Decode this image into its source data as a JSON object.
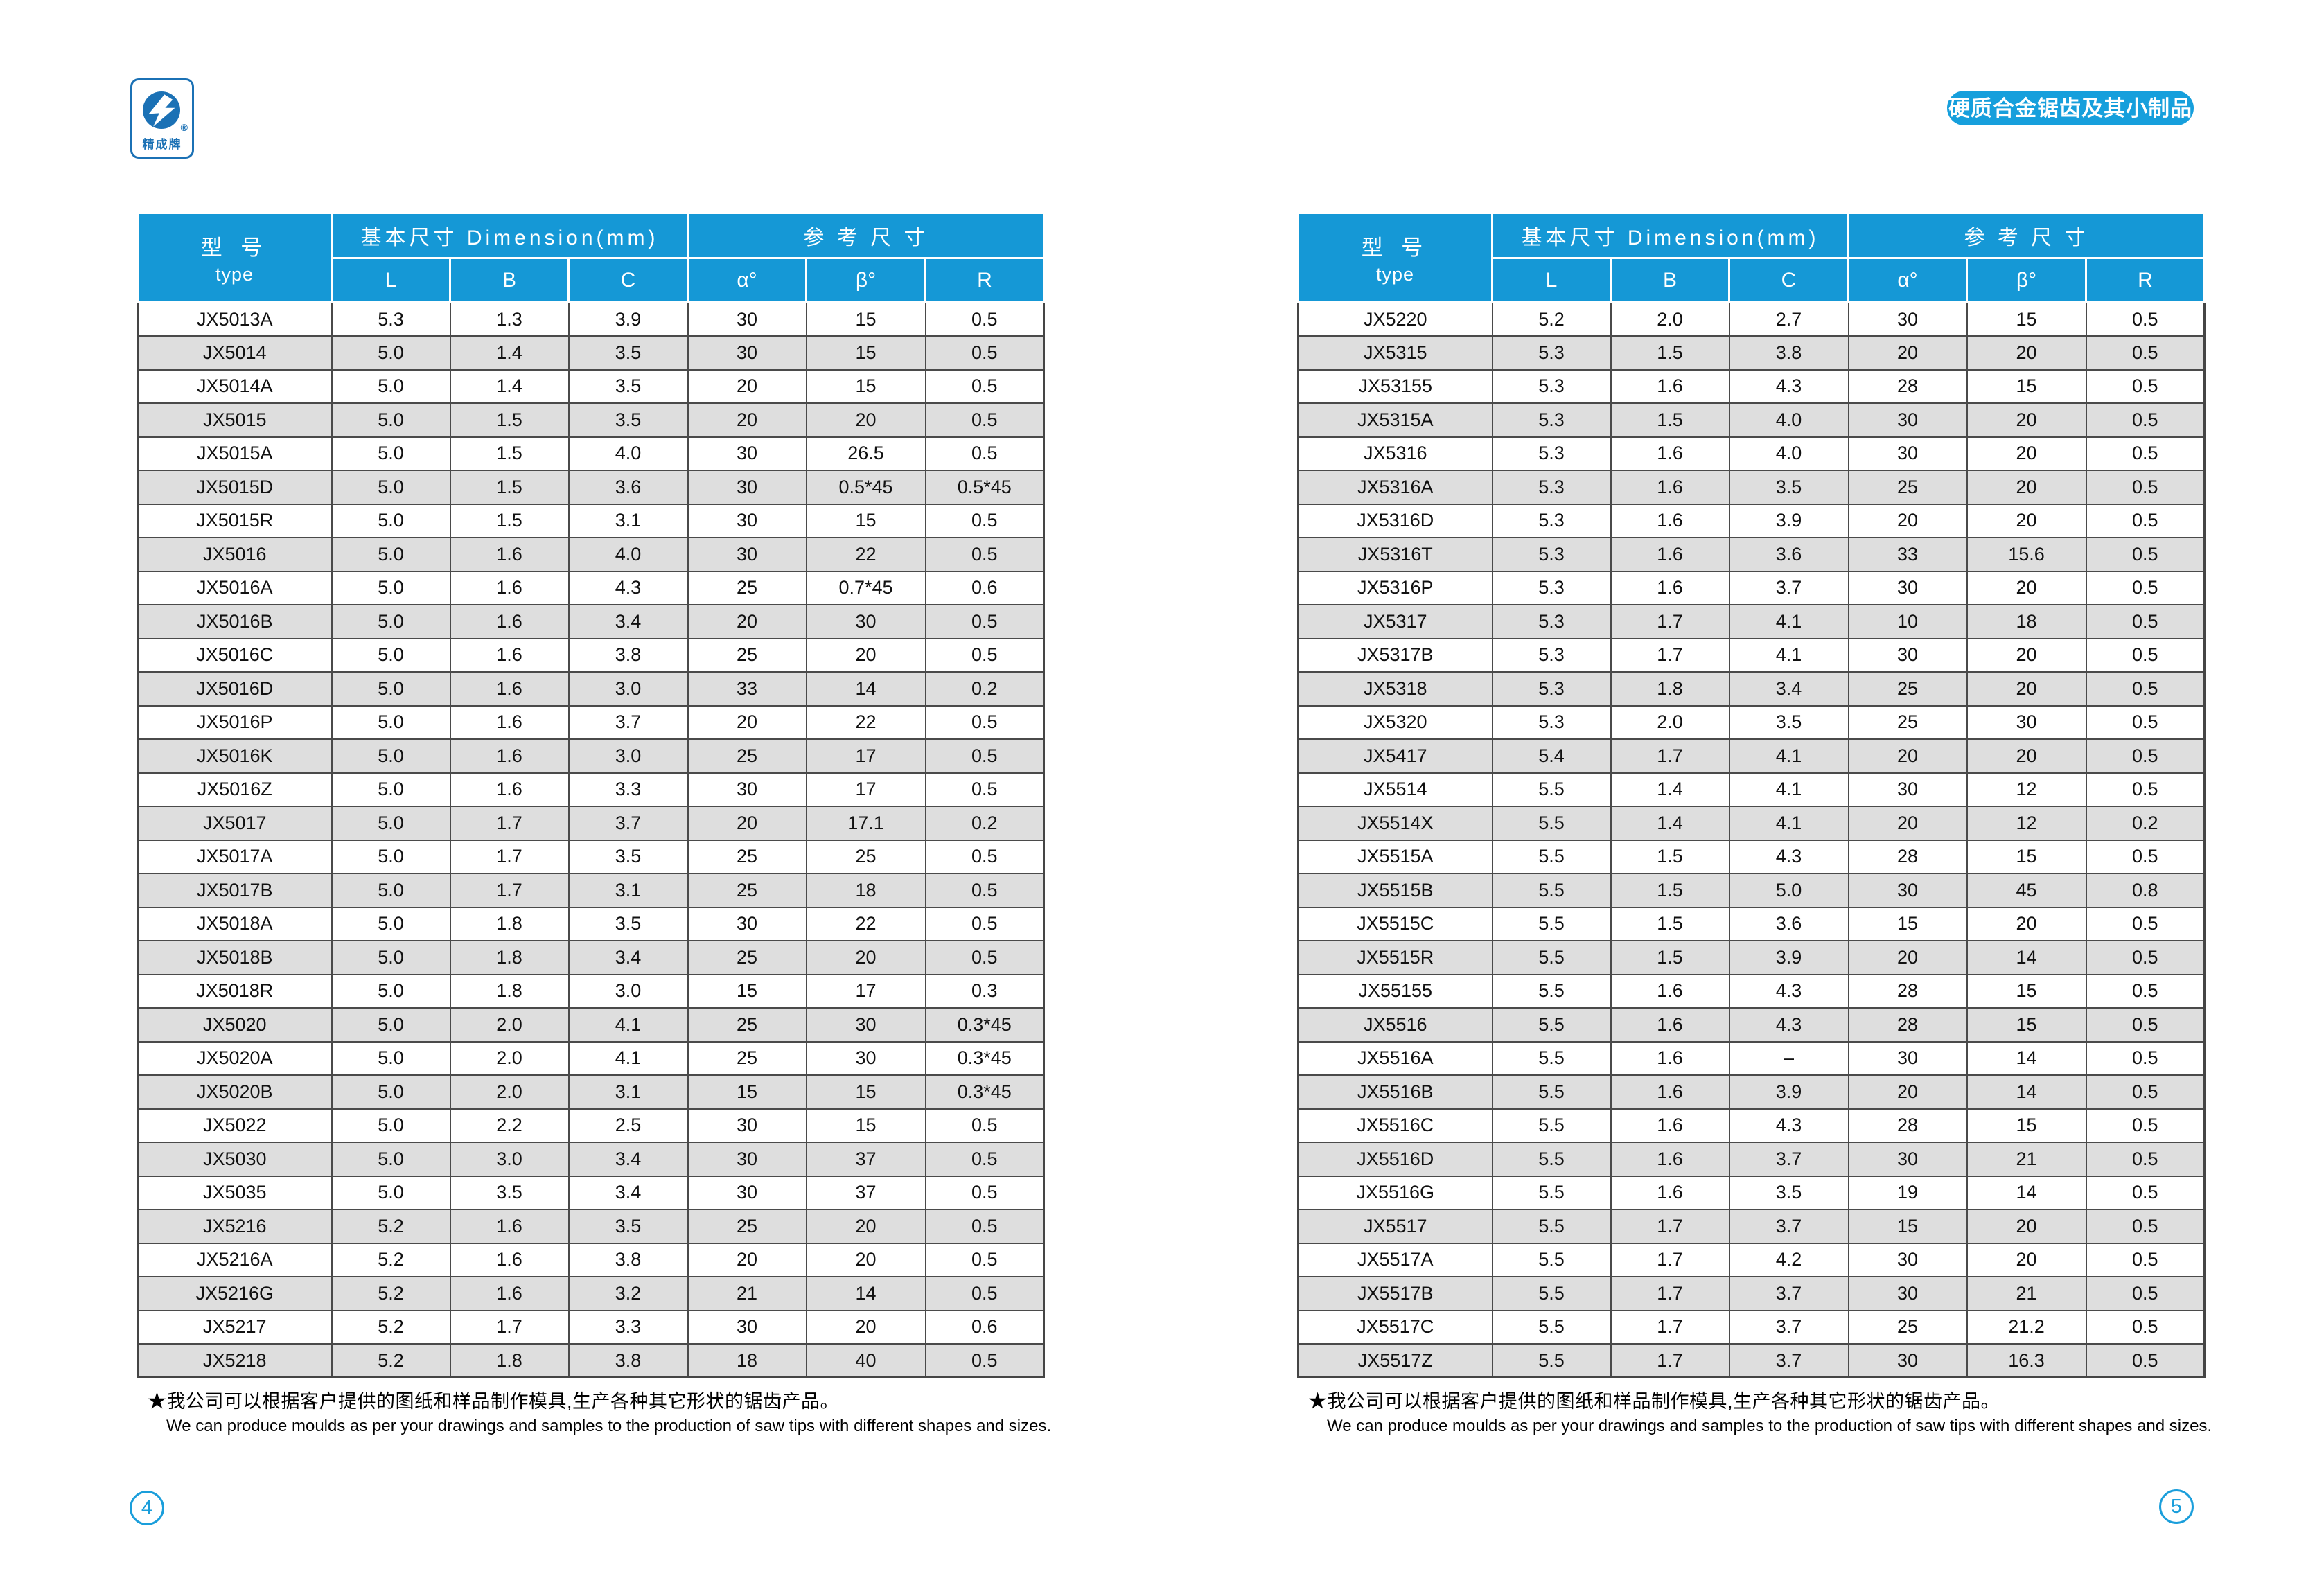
{
  "page": {
    "badge_label": "硬质合金锯齿及其小制品系列",
    "logo": {
      "brand": "精成牌",
      "registered": "®"
    },
    "page_number_left": "4",
    "page_number_right": "5"
  },
  "table_header": {
    "type_cn": "型 号",
    "type_en": "type",
    "group_basic": "基本尺寸 Dimension(mm)",
    "group_ref": "参 考 尺 寸",
    "col_l": "L",
    "col_b": "B",
    "col_c": "C",
    "col_alpha": "α°",
    "col_beta": "β°",
    "col_r": "R"
  },
  "footnote": {
    "cn": "★我公司可以根据客户提供的图纸和样品制作模具,生产各种其它形状的锯齿产品。",
    "en": "We can produce moulds as per your drawings and samples to the production of saw tips with different shapes and sizes."
  },
  "left_table": {
    "rows": [
      [
        "JX5013A",
        "5.3",
        "1.3",
        "3.9",
        "30",
        "15",
        "0.5"
      ],
      [
        "JX5014",
        "5.0",
        "1.4",
        "3.5",
        "30",
        "15",
        "0.5"
      ],
      [
        "JX5014A",
        "5.0",
        "1.4",
        "3.5",
        "20",
        "15",
        "0.5"
      ],
      [
        "JX5015",
        "5.0",
        "1.5",
        "3.5",
        "20",
        "20",
        "0.5"
      ],
      [
        "JX5015A",
        "5.0",
        "1.5",
        "4.0",
        "30",
        "26.5",
        "0.5"
      ],
      [
        "JX5015D",
        "5.0",
        "1.5",
        "3.6",
        "30",
        "0.5*45",
        "0.5*45"
      ],
      [
        "JX5015R",
        "5.0",
        "1.5",
        "3.1",
        "30",
        "15",
        "0.5"
      ],
      [
        "JX5016",
        "5.0",
        "1.6",
        "4.0",
        "30",
        "22",
        "0.5"
      ],
      [
        "JX5016A",
        "5.0",
        "1.6",
        "4.3",
        "25",
        "0.7*45",
        "0.6"
      ],
      [
        "JX5016B",
        "5.0",
        "1.6",
        "3.4",
        "20",
        "30",
        "0.5"
      ],
      [
        "JX5016C",
        "5.0",
        "1.6",
        "3.8",
        "25",
        "20",
        "0.5"
      ],
      [
        "JX5016D",
        "5.0",
        "1.6",
        "3.0",
        "33",
        "14",
        "0.2"
      ],
      [
        "JX5016P",
        "5.0",
        "1.6",
        "3.7",
        "20",
        "22",
        "0.5"
      ],
      [
        "JX5016K",
        "5.0",
        "1.6",
        "3.0",
        "25",
        "17",
        "0.5"
      ],
      [
        "JX5016Z",
        "5.0",
        "1.6",
        "3.3",
        "30",
        "17",
        "0.5"
      ],
      [
        "JX5017",
        "5.0",
        "1.7",
        "3.7",
        "20",
        "17.1",
        "0.2"
      ],
      [
        "JX5017A",
        "5.0",
        "1.7",
        "3.5",
        "25",
        "25",
        "0.5"
      ],
      [
        "JX5017B",
        "5.0",
        "1.7",
        "3.1",
        "25",
        "18",
        "0.5"
      ],
      [
        "JX5018A",
        "5.0",
        "1.8",
        "3.5",
        "30",
        "22",
        "0.5"
      ],
      [
        "JX5018B",
        "5.0",
        "1.8",
        "3.4",
        "25",
        "20",
        "0.5"
      ],
      [
        "JX5018R",
        "5.0",
        "1.8",
        "3.0",
        "15",
        "17",
        "0.3"
      ],
      [
        "JX5020",
        "5.0",
        "2.0",
        "4.1",
        "25",
        "30",
        "0.3*45"
      ],
      [
        "JX5020A",
        "5.0",
        "2.0",
        "4.1",
        "25",
        "30",
        "0.3*45"
      ],
      [
        "JX5020B",
        "5.0",
        "2.0",
        "3.1",
        "15",
        "15",
        "0.3*45"
      ],
      [
        "JX5022",
        "5.0",
        "2.2",
        "2.5",
        "30",
        "15",
        "0.5"
      ],
      [
        "JX5030",
        "5.0",
        "3.0",
        "3.4",
        "30",
        "37",
        "0.5"
      ],
      [
        "JX5035",
        "5.0",
        "3.5",
        "3.4",
        "30",
        "37",
        "0.5"
      ],
      [
        "JX5216",
        "5.2",
        "1.6",
        "3.5",
        "25",
        "20",
        "0.5"
      ],
      [
        "JX5216A",
        "5.2",
        "1.6",
        "3.8",
        "20",
        "20",
        "0.5"
      ],
      [
        "JX5216G",
        "5.2",
        "1.6",
        "3.2",
        "21",
        "14",
        "0.5"
      ],
      [
        "JX5217",
        "5.2",
        "1.7",
        "3.3",
        "30",
        "20",
        "0.6"
      ],
      [
        "JX5218",
        "5.2",
        "1.8",
        "3.8",
        "18",
        "40",
        "0.5"
      ]
    ]
  },
  "right_table": {
    "rows": [
      [
        "JX5220",
        "5.2",
        "2.0",
        "2.7",
        "30",
        "15",
        "0.5"
      ],
      [
        "JX5315",
        "5.3",
        "1.5",
        "3.8",
        "20",
        "20",
        "0.5"
      ],
      [
        "JX53155",
        "5.3",
        "1.6",
        "4.3",
        "28",
        "15",
        "0.5"
      ],
      [
        "JX5315A",
        "5.3",
        "1.5",
        "4.0",
        "30",
        "20",
        "0.5"
      ],
      [
        "JX5316",
        "5.3",
        "1.6",
        "4.0",
        "30",
        "20",
        "0.5"
      ],
      [
        "JX5316A",
        "5.3",
        "1.6",
        "3.5",
        "25",
        "20",
        "0.5"
      ],
      [
        "JX5316D",
        "5.3",
        "1.6",
        "3.9",
        "20",
        "20",
        "0.5"
      ],
      [
        "JX5316T",
        "5.3",
        "1.6",
        "3.6",
        "33",
        "15.6",
        "0.5"
      ],
      [
        "JX5316P",
        "5.3",
        "1.6",
        "3.7",
        "30",
        "20",
        "0.5"
      ],
      [
        "JX5317",
        "5.3",
        "1.7",
        "4.1",
        "10",
        "18",
        "0.5"
      ],
      [
        "JX5317B",
        "5.3",
        "1.7",
        "4.1",
        "30",
        "20",
        "0.5"
      ],
      [
        "JX5318",
        "5.3",
        "1.8",
        "3.4",
        "25",
        "20",
        "0.5"
      ],
      [
        "JX5320",
        "5.3",
        "2.0",
        "3.5",
        "25",
        "30",
        "0.5"
      ],
      [
        "JX5417",
        "5.4",
        "1.7",
        "4.1",
        "20",
        "20",
        "0.5"
      ],
      [
        "JX5514",
        "5.5",
        "1.4",
        "4.1",
        "30",
        "12",
        "0.5"
      ],
      [
        "JX5514X",
        "5.5",
        "1.4",
        "4.1",
        "20",
        "12",
        "0.2"
      ],
      [
        "JX5515A",
        "5.5",
        "1.5",
        "4.3",
        "28",
        "15",
        "0.5"
      ],
      [
        "JX5515B",
        "5.5",
        "1.5",
        "5.0",
        "30",
        "45",
        "0.8"
      ],
      [
        "JX5515C",
        "5.5",
        "1.5",
        "3.6",
        "15",
        "20",
        "0.5"
      ],
      [
        "JX5515R",
        "5.5",
        "1.5",
        "3.9",
        "20",
        "14",
        "0.5"
      ],
      [
        "JX55155",
        "5.5",
        "1.6",
        "4.3",
        "28",
        "15",
        "0.5"
      ],
      [
        "JX5516",
        "5.5",
        "1.6",
        "4.3",
        "28",
        "15",
        "0.5"
      ],
      [
        "JX5516A",
        "5.5",
        "1.6",
        "–",
        "30",
        "14",
        "0.5"
      ],
      [
        "JX5516B",
        "5.5",
        "1.6",
        "3.9",
        "20",
        "14",
        "0.5"
      ],
      [
        "JX5516C",
        "5.5",
        "1.6",
        "4.3",
        "28",
        "15",
        "0.5"
      ],
      [
        "JX5516D",
        "5.5",
        "1.6",
        "3.7",
        "30",
        "21",
        "0.5"
      ],
      [
        "JX5516G",
        "5.5",
        "1.6",
        "3.5",
        "19",
        "14",
        "0.5"
      ],
      [
        "JX5517",
        "5.5",
        "1.7",
        "3.7",
        "15",
        "20",
        "0.5"
      ],
      [
        "JX5517A",
        "5.5",
        "1.7",
        "4.2",
        "30",
        "20",
        "0.5"
      ],
      [
        "JX5517B",
        "5.5",
        "1.7",
        "3.7",
        "30",
        "21",
        "0.5"
      ],
      [
        "JX5517C",
        "5.5",
        "1.7",
        "3.7",
        "25",
        "21.2",
        "0.5"
      ],
      [
        "JX5517Z",
        "5.5",
        "1.7",
        "3.7",
        "30",
        "16.3",
        "0.5"
      ]
    ]
  }
}
